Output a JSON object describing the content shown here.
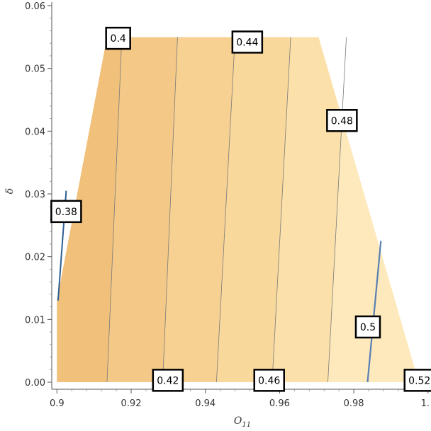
{
  "chart_data": {
    "type": "contour",
    "title": "",
    "xlabel": {
      "main": "O",
      "sub": "11"
    },
    "ylabel": "δ",
    "xlim": [
      0.899,
      1.0
    ],
    "ylim": [
      0.0,
      0.061
    ],
    "x_ticks": [
      {
        "value": 0.9,
        "label": "0.9"
      },
      {
        "value": 0.92,
        "label": "0.92"
      },
      {
        "value": 0.94,
        "label": "0.94"
      },
      {
        "value": 0.96,
        "label": "0.96"
      },
      {
        "value": 0.98,
        "label": "0.98"
      },
      {
        "value": 1.0,
        "label": "1."
      }
    ],
    "y_ticks": [
      {
        "value": 0.0,
        "label": "0.00"
      },
      {
        "value": 0.01,
        "label": "0.01"
      },
      {
        "value": 0.02,
        "label": "0.02"
      },
      {
        "value": 0.03,
        "label": "0.03"
      },
      {
        "value": 0.04,
        "label": "0.04"
      },
      {
        "value": 0.05,
        "label": "0.05"
      },
      {
        "value": 0.06,
        "label": "0.06"
      }
    ],
    "grid": false,
    "region": [
      [
        0.9,
        0.0
      ],
      [
        0.9975,
        0.0
      ],
      [
        0.9705,
        0.055
      ],
      [
        0.9135,
        0.055
      ],
      [
        0.9,
        0.013
      ]
    ],
    "bands": [
      {
        "x_bottom": 0.9,
        "x_top": 0.9,
        "color": "#2f5f94"
      },
      {
        "x_bottom": 0.9135,
        "x_top": 0.9175,
        "color": "#f1c07b"
      },
      {
        "x_bottom": 0.9285,
        "x_top": 0.9325,
        "color": "#f4c987"
      },
      {
        "x_bottom": 0.943,
        "x_top": 0.948,
        "color": "#f7d192"
      },
      {
        "x_bottom": 0.958,
        "x_top": 0.963,
        "color": "#f9d89c"
      },
      {
        "x_bottom": 0.973,
        "x_top": 0.978,
        "color": "#fbe0a9"
      },
      {
        "x_bottom": 0.9975,
        "x_top": 0.9975,
        "color": "#fde9bb"
      }
    ],
    "contours": [
      {
        "level": 0.38,
        "color": "#2f5f94",
        "width": 2,
        "points": [
          [
            0.9003,
            0.013
          ],
          [
            0.9025,
            0.0305
          ]
        ]
      },
      {
        "level": 0.4,
        "color": "#7a7a7a",
        "width": 0.8,
        "points": [
          [
            0.9135,
            0.0
          ],
          [
            0.9175,
            0.055
          ]
        ]
      },
      {
        "level": 0.42,
        "color": "#7a7a7a",
        "width": 0.8,
        "points": [
          [
            0.9285,
            0.0
          ],
          [
            0.9325,
            0.055
          ]
        ]
      },
      {
        "level": 0.44,
        "color": "#7a7a7a",
        "width": 0.8,
        "points": [
          [
            0.943,
            0.0
          ],
          [
            0.948,
            0.055
          ]
        ]
      },
      {
        "level": 0.46,
        "color": "#7a7a7a",
        "width": 0.8,
        "points": [
          [
            0.958,
            0.0
          ],
          [
            0.963,
            0.055
          ]
        ]
      },
      {
        "level": 0.48,
        "color": "#7a7a7a",
        "width": 0.8,
        "points": [
          [
            0.973,
            0.0
          ],
          [
            0.978,
            0.055
          ]
        ]
      },
      {
        "level": 0.5,
        "color": "#5a7fb5",
        "width": 2.2,
        "points": [
          [
            0.9837,
            0.0
          ],
          [
            0.9873,
            0.0225
          ]
        ]
      }
    ],
    "labels": [
      {
        "text": "0.38",
        "x": 0.9025,
        "y": 0.0272
      },
      {
        "text": "0.4",
        "x": 0.9165,
        "y": 0.0548
      },
      {
        "text": "0.42",
        "x": 0.9299,
        "y": 0.0003
      },
      {
        "text": "0.44",
        "x": 0.9513,
        "y": 0.0542
      },
      {
        "text": "0.46",
        "x": 0.9572,
        "y": 0.0003
      },
      {
        "text": "0.48",
        "x": 0.9768,
        "y": 0.0417
      },
      {
        "text": "0.5",
        "x": 0.9838,
        "y": 0.0088
      },
      {
        "text": "0.52",
        "x": 0.9977,
        "y": 0.0003
      }
    ],
    "colors": {
      "axis": "#555555",
      "label_border": "#000000",
      "label_bg": "#ffffff"
    }
  }
}
